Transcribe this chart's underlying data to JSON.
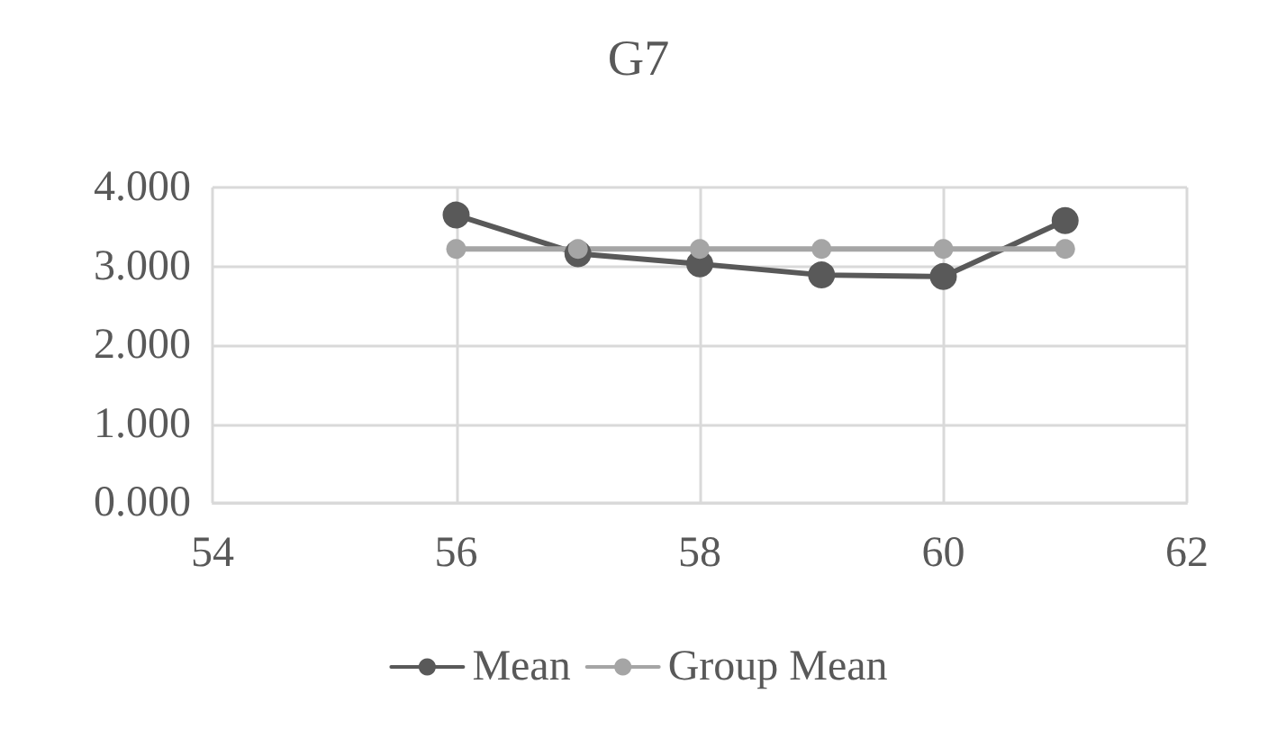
{
  "chart_data": {
    "type": "line",
    "title": "G7",
    "x": [
      56,
      57,
      58,
      59,
      60,
      61
    ],
    "series": [
      {
        "name": "Mean",
        "color": "#595959",
        "values": [
          3.65,
          3.16,
          3.03,
          2.89,
          2.87,
          3.58
        ]
      },
      {
        "name": "Group Mean",
        "color": "#a5a5a5",
        "values": [
          3.22,
          3.22,
          3.22,
          3.22,
          3.22,
          3.22
        ]
      }
    ],
    "xlim": [
      54,
      62
    ],
    "xticks": [
      54,
      56,
      58,
      60,
      62
    ],
    "ylim": [
      0,
      4
    ],
    "yticks": [
      {
        "value": 0,
        "label": "0.000"
      },
      {
        "value": 1,
        "label": "1.000"
      },
      {
        "value": 2,
        "label": "2.000"
      },
      {
        "value": 3,
        "label": "3.000"
      },
      {
        "value": 4,
        "label": "4.000"
      }
    ],
    "grid": true,
    "legend": "bottom",
    "marker": "circle",
    "line_style": "solid"
  }
}
